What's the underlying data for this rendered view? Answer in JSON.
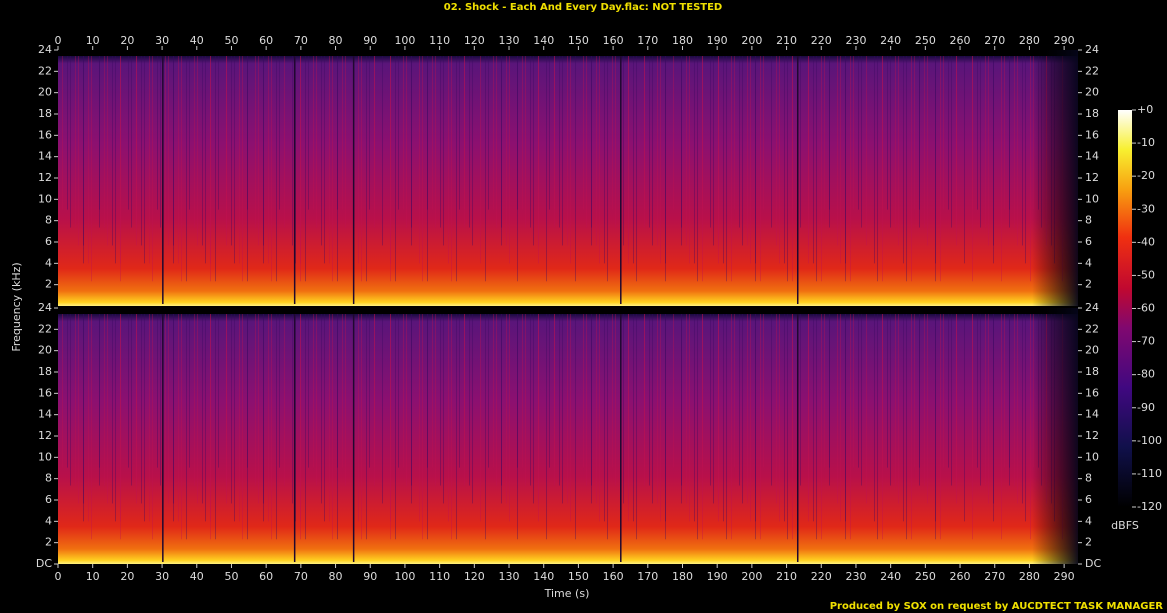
{
  "chart_data": [
    {
      "type": "spectrogram",
      "title": "02. Shock - Each And Every Day.flac: NOT TESTED",
      "y_label": "Frequency (kHz)",
      "xlim": [
        0,
        294
      ],
      "xticks": [
        0,
        10,
        20,
        30,
        40,
        50,
        60,
        70,
        80,
        90,
        100,
        110,
        120,
        130,
        140,
        150,
        160,
        170,
        180,
        190,
        200,
        210,
        220,
        230,
        240,
        250,
        260,
        270,
        280,
        290
      ],
      "ylim": [
        0,
        24
      ],
      "yticks": [
        2,
        4,
        6,
        8,
        10,
        12,
        14,
        16,
        18,
        20,
        22,
        24
      ]
    },
    {
      "type": "spectrogram",
      "x_label": "Time (s)",
      "xlim": [
        0,
        294
      ],
      "xticks": [
        0,
        10,
        20,
        30,
        40,
        50,
        60,
        70,
        80,
        90,
        100,
        110,
        120,
        130,
        140,
        150,
        160,
        170,
        180,
        190,
        200,
        210,
        220,
        230,
        240,
        250,
        260,
        270,
        280,
        290
      ],
      "ylim": [
        0,
        24
      ],
      "yticks": [
        {
          "value": 0,
          "label": "DC"
        },
        2,
        4,
        6,
        8,
        10,
        12,
        14,
        16,
        18,
        20,
        22,
        24
      ],
      "colorbar": {
        "label": "dBFS",
        "lim": [
          -120,
          0
        ],
        "ticks": [
          {
            "value": 0,
            "label": "+0"
          },
          -10,
          -20,
          -30,
          -40,
          -50,
          -60,
          -70,
          -80,
          -90,
          -100,
          -110,
          -120
        ]
      },
      "footer": "Produced by SOX on request by AUCDTECT TASK MANAGER"
    }
  ]
}
